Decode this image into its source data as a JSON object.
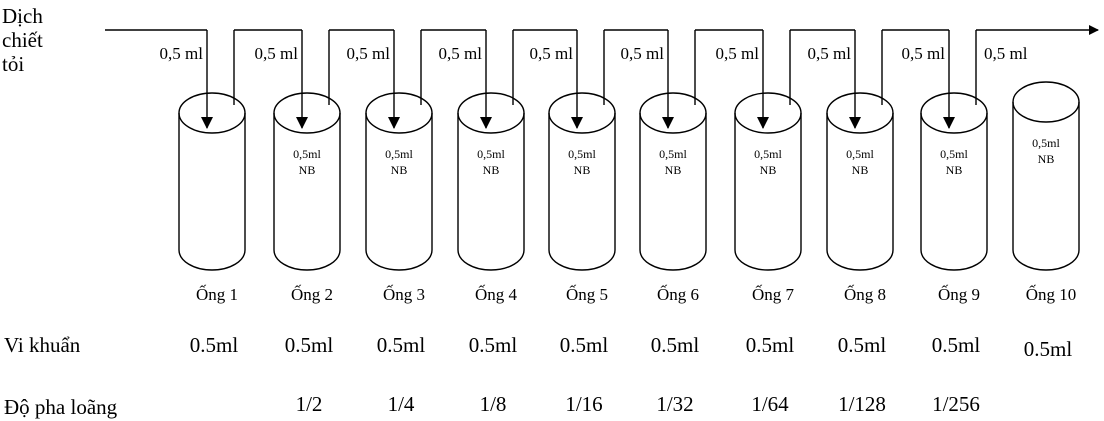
{
  "source": {
    "lines": [
      "Dịch",
      "chiết",
      "tỏi"
    ]
  },
  "transfers": [
    "0,5 ml",
    "0,5 ml",
    "0,5 ml",
    "0,5 ml",
    "0,5 ml",
    "0,5 ml",
    "0,5 ml",
    "0,5 ml",
    "0,5 ml",
    "0,5 ml"
  ],
  "tubes": [
    {
      "name": "Ống 1"
    },
    {
      "name": "Ống 2",
      "content": [
        "0,5ml",
        "NB"
      ]
    },
    {
      "name": "Ống 3",
      "content": [
        "0,5ml",
        "NB"
      ]
    },
    {
      "name": "Ống 4",
      "content": [
        "0,5ml",
        "NB"
      ]
    },
    {
      "name": "Ống 5",
      "content": [
        "0,5ml",
        "NB"
      ]
    },
    {
      "name": "Ống 6",
      "content": [
        "0,5ml",
        "NB"
      ]
    },
    {
      "name": "Ống 7",
      "content": [
        "0,5ml",
        "NB"
      ]
    },
    {
      "name": "Ống 8",
      "content": [
        "0,5ml",
        "NB"
      ]
    },
    {
      "name": "Ống 9",
      "content": [
        "0,5ml",
        "NB"
      ]
    },
    {
      "name": "Ống 10",
      "content": [
        "0,5ml",
        "NB"
      ]
    }
  ],
  "bacteria": {
    "label": "Vi khuẩn",
    "values": [
      "0.5ml",
      "0.5ml",
      "0.5ml",
      "0.5ml",
      "0.5ml",
      "0.5ml",
      "0.5ml",
      "0.5ml",
      "0.5ml",
      "0.5ml"
    ]
  },
  "dilution": {
    "label": "Độ pha loãng",
    "values": [
      "1/2",
      "1/4",
      "1/8",
      "1/16",
      "1/32",
      "1/64",
      "1/128",
      "1/256"
    ]
  }
}
